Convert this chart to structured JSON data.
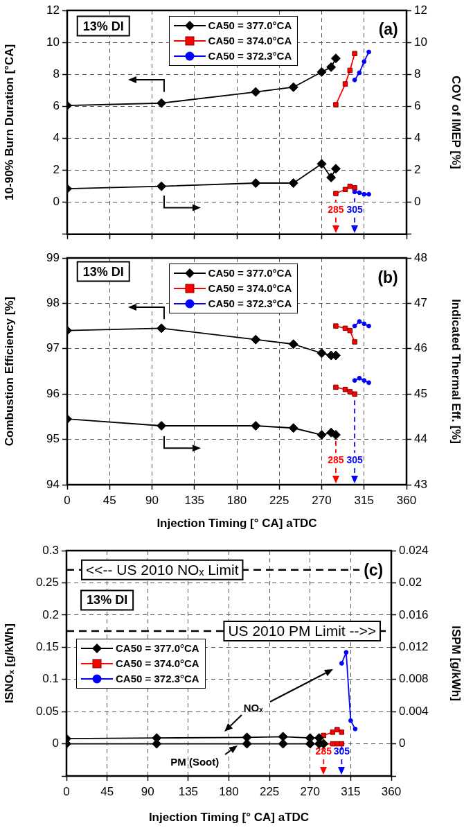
{
  "chart_data": [
    {
      "type": "line",
      "ylabel": "10-90% Burn Duration [°CA]",
      "y2label": "COV of IMEP [%]",
      "legend": "top",
      "grid": true,
      "tick_labels": "y",
      "xlim": [
        0,
        360
      ],
      "xticks": [
        0,
        45,
        90,
        135,
        180,
        225,
        270,
        315,
        360
      ],
      "ylim": [
        -2,
        12
      ],
      "yticks": [
        {
          "value": -2,
          "label": null
        },
        0,
        2,
        4,
        6,
        8,
        10,
        12
      ],
      "y2lim": [
        -2,
        12
      ],
      "y2ticks": [
        {
          "value": -2,
          "label": null
        },
        0,
        2,
        4,
        6,
        8,
        10,
        12
      ],
      "annotations": [
        "13% DI",
        "(a)"
      ],
      "ref_lines": [
        {
          "axis": "x",
          "value": 285,
          "label": "285",
          "color": "#ff0000",
          "line_style": "dashed"
        },
        {
          "axis": "x",
          "value": 305,
          "label": "305",
          "color": "#0000ff",
          "line_style": "dashed"
        }
      ],
      "series": [
        {
          "name": "CA50 = 377.0°CA",
          "color": "#000000",
          "marker": "diamond",
          "x": [
            0,
            100,
            200,
            240,
            270,
            280,
            285
          ],
          "values": [
            6.05,
            6.2,
            6.9,
            7.2,
            8.15,
            8.45,
            9.0
          ]
        },
        {
          "name": "CA50 = 374.0°CA",
          "color": "#ff0000",
          "marker": "square",
          "x": [
            285,
            295,
            300,
            305
          ],
          "values": [
            6.1,
            7.4,
            8.25,
            9.3
          ]
        },
        {
          "name": "CA50 = 372.3°CA",
          "color": "#0000ff",
          "marker": "circle",
          "x": [
            305,
            310,
            315,
            320
          ],
          "values": [
            7.65,
            8.1,
            8.8,
            9.4
          ]
        },
        {
          "color": "#000000",
          "marker": "diamond",
          "axis": "y2",
          "x": [
            0,
            100,
            200,
            240,
            270,
            280,
            285
          ],
          "values": [
            0.85,
            1.0,
            1.2,
            1.2,
            2.4,
            1.55,
            2.1
          ]
        },
        {
          "color": "#ff0000",
          "marker": "square",
          "axis": "y2",
          "x": [
            285,
            295,
            300,
            305
          ],
          "values": [
            0.55,
            0.8,
            1.0,
            0.9
          ]
        },
        {
          "color": "#0000ff",
          "marker": "circle",
          "axis": "y2",
          "x": [
            305,
            310,
            315,
            320
          ],
          "values": [
            0.65,
            0.6,
            0.5,
            0.5
          ]
        }
      ]
    },
    {
      "type": "line",
      "xlabel": "Injection Timing [° CA] aTDC",
      "ylabel": "Combustion Efficiency [%]",
      "y2label": "Indicated Thermal Eff. [%]",
      "legend": "top",
      "grid": true,
      "xlim": [
        0,
        360
      ],
      "xticks": [
        0,
        45,
        90,
        135,
        180,
        225,
        270,
        315,
        360
      ],
      "ylim": [
        94,
        99
      ],
      "yticks": [
        94,
        95,
        96,
        97,
        98,
        99
      ],
      "y2lim": [
        43,
        48
      ],
      "y2ticks": [
        43,
        44,
        45,
        46,
        47,
        48
      ],
      "annotations": [
        "13% DI",
        "(b)"
      ],
      "ref_lines": [
        {
          "axis": "x",
          "value": 285,
          "label": "285",
          "color": "#ff0000",
          "line_style": "dashed"
        },
        {
          "axis": "x",
          "value": 305,
          "label": "305",
          "color": "#0000ff",
          "line_style": "dashed"
        }
      ],
      "series": [
        {
          "name": "CA50 = 377.0°CA",
          "color": "#000000",
          "marker": "diamond",
          "x": [
            0,
            100,
            200,
            240,
            270,
            280,
            285
          ],
          "values": [
            97.4,
            97.45,
            97.2,
            97.1,
            96.9,
            96.85,
            96.85
          ]
        },
        {
          "name": "CA50 = 374.0°CA",
          "color": "#ff0000",
          "marker": "square",
          "x": [
            285,
            295,
            300,
            305
          ],
          "values": [
            97.5,
            97.45,
            97.4,
            97.15
          ]
        },
        {
          "name": "CA50 = 372.3°CA",
          "color": "#0000ff",
          "marker": "circle",
          "x": [
            305,
            310,
            315,
            320
          ],
          "values": [
            97.5,
            97.6,
            97.55,
            97.5
          ]
        },
        {
          "color": "#000000",
          "marker": "diamond",
          "axis": "y2",
          "x": [
            0,
            100,
            200,
            240,
            270,
            280,
            285
          ],
          "values": [
            44.45,
            44.3,
            44.3,
            44.25,
            44.1,
            44.15,
            44.1
          ]
        },
        {
          "color": "#ff0000",
          "marker": "square",
          "axis": "y2",
          "x": [
            285,
            295,
            300,
            305
          ],
          "values": [
            45.15,
            45.1,
            45.05,
            45.0
          ]
        },
        {
          "color": "#0000ff",
          "marker": "circle",
          "axis": "y2",
          "x": [
            305,
            310,
            315,
            320
          ],
          "values": [
            45.3,
            45.35,
            45.3,
            45.25
          ]
        }
      ]
    },
    {
      "type": "line",
      "xlabel": "Injection Timing [° CA] aTDC",
      "ylabel": "ISNOₓ [g/kWh]",
      "y2label": "ISPM [g/kWh]",
      "legend": "left",
      "grid": true,
      "xlim": [
        0,
        360
      ],
      "xticks": [
        0,
        45,
        90,
        135,
        180,
        225,
        270,
        315,
        360
      ],
      "ylim": [
        -0.05,
        0.3
      ],
      "yticks": [
        {
          "value": -0.05,
          "label": null
        },
        0,
        0.05,
        0.1,
        0.15,
        0.2,
        0.25,
        0.3
      ],
      "y2lim": [
        -0.004,
        0.024
      ],
      "y2ticks": [
        {
          "value": -0.004,
          "label": null
        },
        0,
        0.004,
        0.008,
        0.012,
        0.016,
        0.02,
        0.024
      ],
      "annotations": [
        "13% DI",
        "(c)",
        "NOₓ",
        "PM (Soot)"
      ],
      "ref_lines": [
        {
          "axis": "y",
          "value": 0.27,
          "label": "<<-- US 2010 NOₓ Limit",
          "color": "#000000",
          "line_style": "dashed"
        },
        {
          "axis": "y2",
          "value": 0.014,
          "label": "US 2010 PM Limit -->>",
          "color": "#000000",
          "line_style": "dashed"
        },
        {
          "axis": "x",
          "value": 285,
          "label": "285",
          "color": "#ff0000",
          "line_style": "dashed"
        },
        {
          "axis": "x",
          "value": 305,
          "label": "305",
          "color": "#0000ff",
          "line_style": "dashed"
        }
      ],
      "series": [
        {
          "name": "CA50 = 377.0°CA",
          "color": "#000000",
          "marker": "diamond",
          "x": [
            0,
            100,
            200,
            240,
            270,
            280
          ],
          "values": [
            0.008,
            0.009,
            0.01,
            0.011,
            0.009,
            0.009
          ]
        },
        {
          "name": "CA50 = 374.0°CA",
          "color": "#ff0000",
          "marker": "square",
          "x": [
            285,
            295,
            300,
            305
          ],
          "values": [
            0.013,
            0.018,
            0.022,
            0.018
          ]
        },
        {
          "name": "CA50 = 372.3°CA",
          "color": "#0000ff",
          "marker": "circle",
          "x": [
            305,
            310,
            315,
            320
          ],
          "values": [
            0.125,
            0.142,
            0.036,
            0.023
          ]
        },
        {
          "color": "#000000",
          "marker": "diamond",
          "axis": "y2",
          "x": [
            0,
            100,
            200,
            240,
            270,
            280,
            285
          ],
          "values": [
            0,
            0,
            0,
            0,
            0,
            0,
            0
          ]
        },
        {
          "color": "#ff0000",
          "marker": "square",
          "axis": "y2",
          "x": [
            285,
            295,
            300,
            305
          ],
          "values": [
            0,
            0,
            0,
            0
          ]
        }
      ]
    }
  ]
}
